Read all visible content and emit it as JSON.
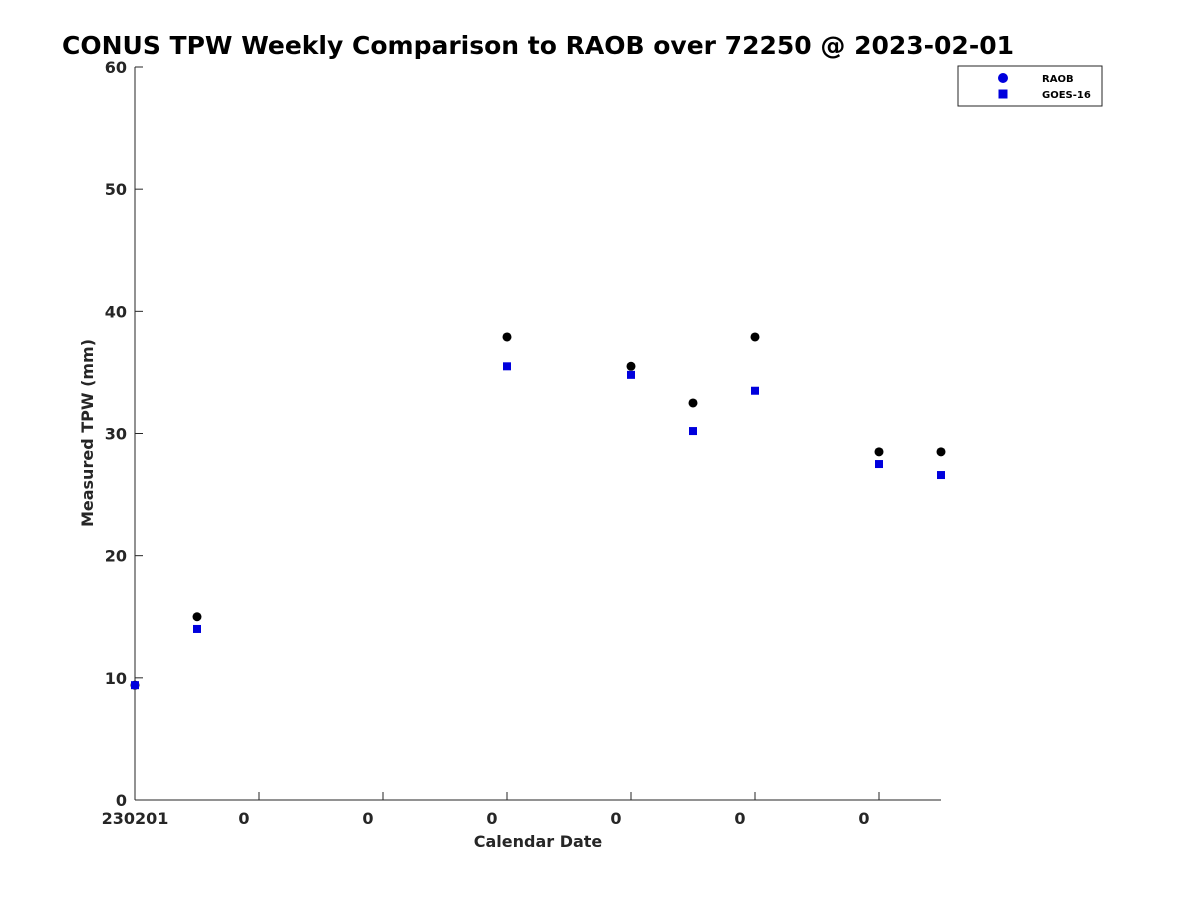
{
  "chart_data": {
    "type": "scatter",
    "title": "CONUS TPW Weekly Comparison to RAOB over 72250 @ 2023-02-01",
    "xlabel": "Calendar Date",
    "ylabel": "Measured TPW (mm)",
    "ylim": [
      0,
      60
    ],
    "yticks": [
      0,
      10,
      20,
      30,
      40,
      50,
      60
    ],
    "xlim": [
      0,
      6.5
    ],
    "xticks": [
      0,
      1,
      2,
      3,
      4,
      5,
      6
    ],
    "xtick_labels": [
      "230201",
      "0",
      "0",
      "0",
      "0",
      "0",
      "0"
    ],
    "grid": false,
    "legend_position": "top-right",
    "series": [
      {
        "name": "RAOB",
        "marker": "circle",
        "color": "#000000",
        "legend_color": "#0000dd",
        "x": [
          0,
          0.5,
          3,
          4,
          4.5,
          5,
          6,
          6.5
        ],
        "y": [
          9.4,
          15.0,
          37.9,
          35.5,
          32.5,
          37.9,
          28.5,
          28.5
        ]
      },
      {
        "name": "GOES-16",
        "marker": "square",
        "color": "#0000dd",
        "x": [
          0,
          0.5,
          3,
          4,
          4.5,
          5,
          6,
          6.5
        ],
        "y": [
          9.4,
          14.0,
          35.5,
          34.8,
          30.2,
          33.5,
          27.5,
          26.6
        ]
      }
    ]
  }
}
